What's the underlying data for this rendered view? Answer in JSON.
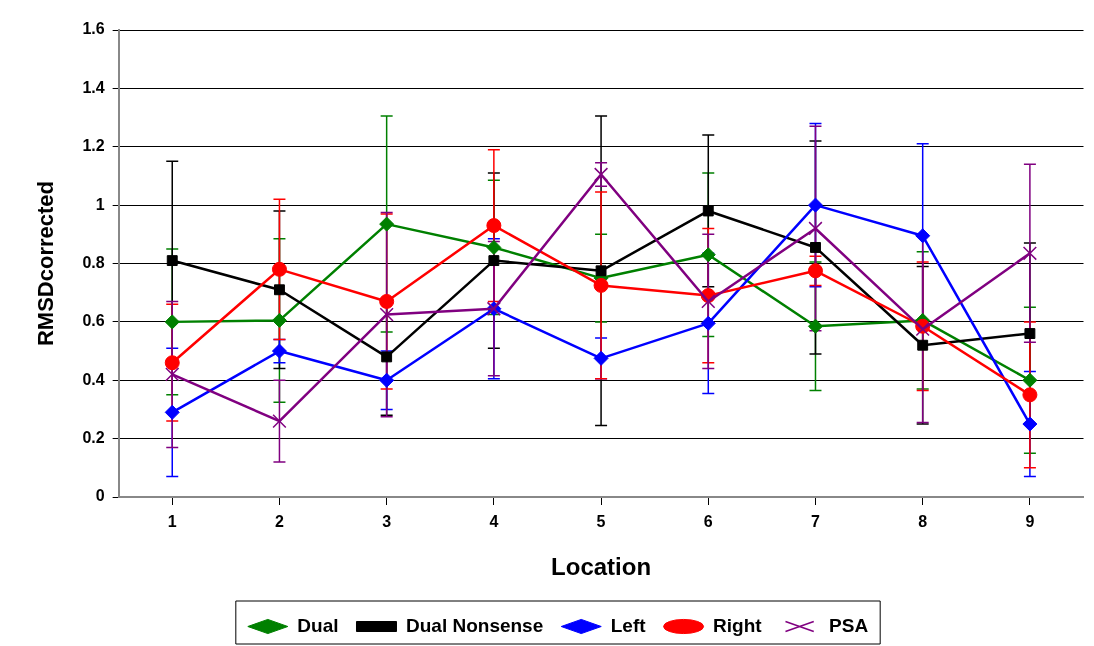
{
  "chart_data": {
    "type": "line",
    "xlabel": "Location",
    "ylabel": "RMSDcorrected",
    "categories": [
      "1",
      "2",
      "3",
      "4",
      "5",
      "6",
      "7",
      "8",
      "9"
    ],
    "ylim": [
      0,
      1.6
    ],
    "yticks": [
      0,
      0.2,
      0.4,
      0.6,
      0.8,
      1,
      1.2,
      1.4,
      1.6
    ],
    "grid": "y",
    "legend": "bottom",
    "line_style": "solid",
    "series": [
      {
        "name": "Dual",
        "color": "#008000",
        "marker": "diamond",
        "values": [
          0.6,
          0.605,
          0.935,
          0.855,
          0.75,
          0.83,
          0.585,
          0.605,
          0.4
        ],
        "errors": [
          0.25,
          0.28,
          0.37,
          0.23,
          0.15,
          0.28,
          0.22,
          0.235,
          0.25
        ]
      },
      {
        "name": "Dual Nonsense",
        "color": "#000000",
        "marker": "square",
        "values": [
          0.81,
          0.71,
          0.48,
          0.81,
          0.775,
          0.98,
          0.855,
          0.52,
          0.56
        ],
        "errors": [
          0.34,
          0.27,
          0.2,
          0.3,
          0.53,
          0.26,
          0.365,
          0.27,
          0.31
        ]
      },
      {
        "name": "Left",
        "color": "#0000ff",
        "marker": "diamond",
        "values": [
          0.29,
          0.5,
          0.4,
          0.645,
          0.475,
          0.595,
          1.0,
          0.895,
          0.25
        ],
        "errors": [
          0.22,
          0.04,
          0.1,
          0.24,
          0.07,
          0.24,
          0.28,
          0.315,
          0.18
        ]
      },
      {
        "name": "Right",
        "color": "#ff0000",
        "marker": "circle",
        "values": [
          0.46,
          0.78,
          0.67,
          0.93,
          0.725,
          0.69,
          0.775,
          0.585,
          0.35
        ],
        "errors": [
          0.2,
          0.24,
          0.3,
          0.26,
          0.32,
          0.23,
          0.05,
          0.22,
          0.25
        ]
      },
      {
        "name": "PSA",
        "color": "#800080",
        "marker": "cross",
        "values": [
          0.42,
          0.26,
          0.625,
          0.645,
          1.105,
          0.67,
          0.92,
          0.575,
          0.835
        ],
        "errors": [
          0.25,
          0.14,
          0.35,
          0.23,
          0.04,
          0.23,
          0.35,
          0.32,
          0.305
        ]
      }
    ]
  }
}
